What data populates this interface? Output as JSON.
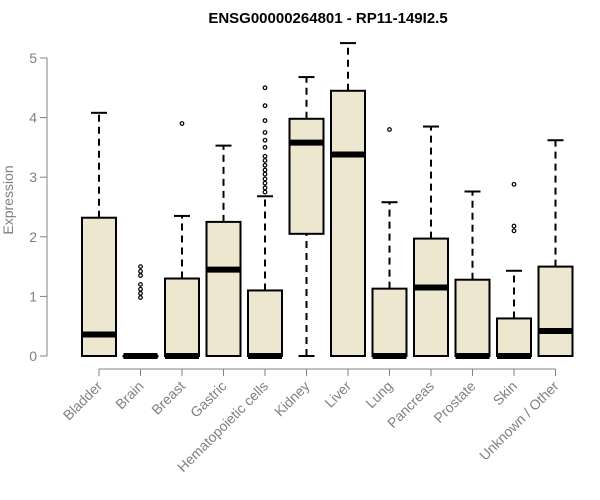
{
  "chart_data": {
    "type": "box",
    "title": "ENSG00000264801 - RP11-149I2.5",
    "xlabel": "",
    "ylabel": "Expression",
    "ylim": [
      0,
      5.2
    ],
    "yticks": [
      0,
      1,
      2,
      3,
      4,
      5
    ],
    "categories": [
      "Bladder",
      "Brain",
      "Breast",
      "Gastric",
      "Hematopoietic cells",
      "Kidney",
      "Liver",
      "Lung",
      "Pancreas",
      "Prostate",
      "Skin",
      "Unknown / Other"
    ],
    "boxes": [
      {
        "name": "Bladder",
        "min": 0,
        "q1": 0,
        "median": 0.36,
        "q3": 2.32,
        "max": 4.08,
        "outliers": []
      },
      {
        "name": "Brain",
        "min": 0,
        "q1": 0,
        "median": 0,
        "q3": 0,
        "max": 0,
        "outliers": [
          0.98,
          1.05,
          1.12,
          1.2,
          1.35,
          1.42,
          1.5
        ]
      },
      {
        "name": "Breast",
        "min": 0,
        "q1": 0,
        "median": 0,
        "q3": 1.3,
        "max": 2.35,
        "outliers": [
          3.9
        ]
      },
      {
        "name": "Gastric",
        "min": 0,
        "q1": 0,
        "median": 1.45,
        "q3": 2.25,
        "max": 3.53,
        "outliers": []
      },
      {
        "name": "Hematopoietic cells",
        "min": 0,
        "q1": 0,
        "median": 0,
        "q3": 1.1,
        "max": 2.68,
        "outliers": [
          2.75,
          2.82,
          2.9,
          2.97,
          3.05,
          3.12,
          3.2,
          3.28,
          3.35,
          3.5,
          3.62,
          3.75,
          3.95,
          4.2,
          4.5
        ]
      },
      {
        "name": "Kidney",
        "min": 0,
        "q1": 2.05,
        "median": 3.58,
        "q3": 3.98,
        "max": 4.68,
        "outliers": []
      },
      {
        "name": "Liver",
        "min": 0,
        "q1": 0,
        "median": 3.38,
        "q3": 4.45,
        "max": 5.25,
        "outliers": []
      },
      {
        "name": "Lung",
        "min": 0,
        "q1": 0,
        "median": 0,
        "q3": 1.13,
        "max": 2.58,
        "outliers": [
          3.8
        ]
      },
      {
        "name": "Pancreas",
        "min": 0,
        "q1": 0,
        "median": 1.15,
        "q3": 1.97,
        "max": 3.85,
        "outliers": []
      },
      {
        "name": "Prostate",
        "min": 0,
        "q1": 0,
        "median": 0,
        "q3": 1.28,
        "max": 2.76,
        "outliers": []
      },
      {
        "name": "Skin",
        "min": 0,
        "q1": 0,
        "median": 0,
        "q3": 0.63,
        "max": 1.43,
        "outliers": [
          2.1,
          2.18,
          2.88
        ]
      },
      {
        "name": "Unknown / Other",
        "min": 0,
        "q1": 0,
        "median": 0.42,
        "q3": 1.5,
        "max": 3.62,
        "outliers": []
      }
    ],
    "box_fill": "#ede7cf",
    "box_stroke": "#000000",
    "axis_text_color": "#808080",
    "grid": false,
    "legend": "none"
  }
}
